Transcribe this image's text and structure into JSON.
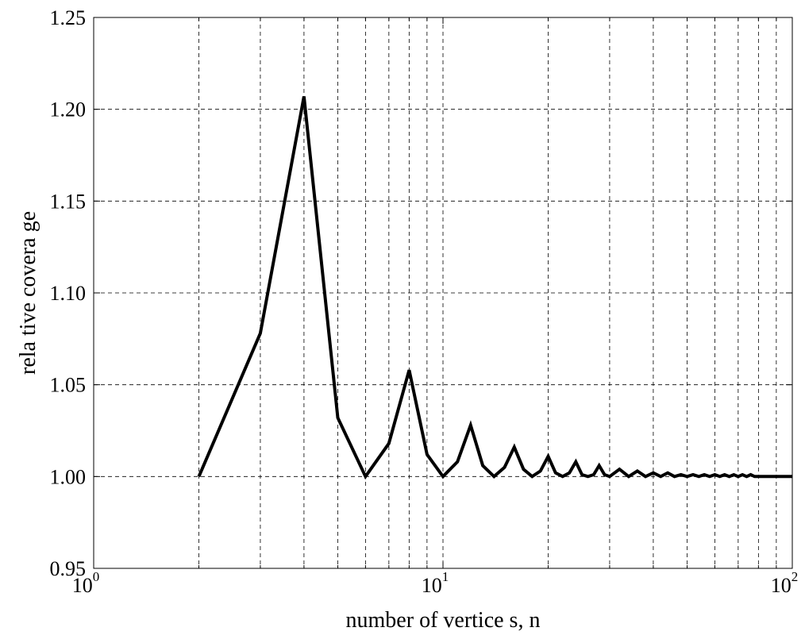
{
  "chart_data": {
    "type": "line",
    "xlabel": "number of vertice s, n",
    "ylabel": "rela tive  covera ge",
    "x_scale": "log",
    "xlim": [
      1,
      100
    ],
    "ylim": [
      0.95,
      1.25
    ],
    "y_ticks": [
      "0.95",
      "1.00",
      "1.05",
      "1.10",
      "1.15",
      "1.20",
      "1.25"
    ],
    "x_ticks": [
      {
        "base": "10",
        "exp": "0"
      },
      {
        "base": "10",
        "exp": "1"
      },
      {
        "base": "10",
        "exp": "2"
      }
    ],
    "grid": true,
    "series": [
      {
        "color": "#000000",
        "x": [
          2,
          3,
          4,
          5,
          6,
          7,
          8,
          9,
          10,
          11,
          12,
          13,
          14,
          15,
          16,
          17,
          18,
          19,
          20,
          21,
          22,
          23,
          24,
          25,
          26,
          27,
          28,
          29,
          30,
          32,
          34,
          36,
          38,
          40,
          42,
          44,
          46,
          48,
          50,
          52,
          54,
          56,
          58,
          60,
          62,
          64,
          66,
          68,
          70,
          72,
          74,
          76,
          78,
          80,
          85,
          90,
          95,
          100
        ],
        "y": [
          1.0,
          1.078,
          1.207,
          1.032,
          1.0,
          1.018,
          1.058,
          1.012,
          1.0,
          1.008,
          1.028,
          1.006,
          1.0,
          1.005,
          1.016,
          1.004,
          1.0,
          1.003,
          1.011,
          1.002,
          1.0,
          1.002,
          1.008,
          1.001,
          1.0,
          1.001,
          1.006,
          1.001,
          1.0,
          1.004,
          1.0,
          1.003,
          1.0,
          1.002,
          1.0,
          1.002,
          1.0,
          1.001,
          1.0,
          1.001,
          1.0,
          1.001,
          1.0,
          1.001,
          1.0,
          1.001,
          1.0,
          1.001,
          1.0,
          1.001,
          1.0,
          1.001,
          1.0,
          1.0,
          1.0,
          1.0,
          1.0,
          1.0
        ]
      }
    ]
  }
}
